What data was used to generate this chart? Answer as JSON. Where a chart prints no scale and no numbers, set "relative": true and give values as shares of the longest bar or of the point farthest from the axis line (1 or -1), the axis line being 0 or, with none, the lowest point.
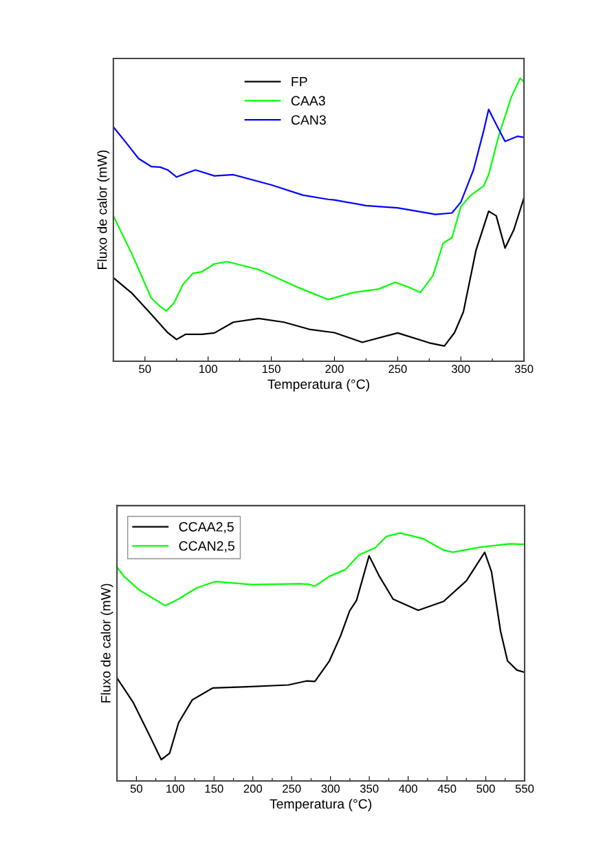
{
  "chart_data": [
    {
      "type": "line",
      "relative": true,
      "xlabel": "Temperatura (°C)",
      "ylabel": "Fluxo de calor (mW)",
      "xlim": [
        25,
        350
      ],
      "xticks": [
        50,
        {
          "value": 75,
          "label": null
        },
        100,
        {
          "value": 125,
          "label": null
        },
        150,
        {
          "value": 175,
          "label": null
        },
        200,
        {
          "value": 225,
          "label": null
        },
        250,
        {
          "value": 275,
          "label": null
        },
        300,
        {
          "value": 325,
          "label": null
        },
        350
      ],
      "tick_labels": "x",
      "legend": "top",
      "grid": false,
      "series": [
        {
          "name": "FP",
          "color": "#000000",
          "x": [
            25,
            40,
            55,
            68,
            75,
            82,
            95,
            105,
            120,
            140,
            160,
            180,
            200,
            222,
            250,
            275,
            287,
            295,
            302,
            312,
            322,
            328,
            335,
            342,
            350
          ],
          "values": [
            0.295,
            0.239,
            0.166,
            0.101,
            0.077,
            0.095,
            0.095,
            0.1,
            0.138,
            0.151,
            0.138,
            0.113,
            0.101,
            0.067,
            0.1,
            0.065,
            0.054,
            0.101,
            0.174,
            0.392,
            0.53,
            0.514,
            0.4,
            0.465,
            0.578
          ]
        },
        {
          "name": "CAA3",
          "color": "#00ff00",
          "x": [
            25,
            40,
            55,
            62,
            67,
            73,
            80,
            88,
            95,
            105,
            115,
            140,
            170,
            195,
            215,
            235,
            248,
            258,
            268,
            278,
            286,
            293,
            300,
            308,
            318,
            322,
            330,
            340,
            347,
            350
          ],
          "values": [
            0.514,
            0.376,
            0.223,
            0.194,
            0.178,
            0.206,
            0.271,
            0.311,
            0.316,
            0.344,
            0.352,
            0.324,
            0.263,
            0.218,
            0.243,
            0.255,
            0.279,
            0.263,
            0.243,
            0.303,
            0.417,
            0.437,
            0.546,
            0.587,
            0.619,
            0.659,
            0.797,
            0.934,
            1,
            0.987
          ]
        },
        {
          "name": "CAN3",
          "color": "#0000ff",
          "x": [
            25,
            35,
            45,
            55,
            62,
            68,
            75,
            82,
            90,
            105,
            120,
            150,
            175,
            195,
            200,
            225,
            250,
            280,
            293,
            300,
            310,
            318,
            322,
            328,
            335,
            345,
            350
          ],
          "values": [
            0.828,
            0.773,
            0.716,
            0.688,
            0.686,
            0.676,
            0.651,
            0.663,
            0.676,
            0.655,
            0.659,
            0.623,
            0.587,
            0.572,
            0.57,
            0.55,
            0.542,
            0.519,
            0.524,
            0.562,
            0.676,
            0.813,
            0.89,
            0.837,
            0.777,
            0.795,
            0.791
          ]
        }
      ]
    },
    {
      "type": "line",
      "relative": true,
      "xlabel": "Temperatura (°C)",
      "ylabel": "Fluxo de calor (mW)",
      "xlim": [
        25,
        550
      ],
      "xticks": [
        50,
        {
          "value": 75,
          "label": null
        },
        100,
        {
          "value": 125,
          "label": null
        },
        150,
        {
          "value": 175,
          "label": null
        },
        200,
        {
          "value": 225,
          "label": null
        },
        250,
        {
          "value": 275,
          "label": null
        },
        300,
        {
          "value": 325,
          "label": null
        },
        350,
        {
          "value": 375,
          "label": null
        },
        400,
        {
          "value": 425,
          "label": null
        },
        450,
        {
          "value": 475,
          "label": null
        },
        500,
        {
          "value": 525,
          "label": null
        },
        550
      ],
      "tick_labels": "x",
      "legend": "top left",
      "grid": false,
      "series": [
        {
          "name": "CCAA2,5",
          "color": "#000000",
          "x": [
            25,
            45.6,
            66,
            82,
            92.7,
            104.4,
            122,
            148.6,
            192.7,
            245.6,
            269,
            279.5,
            281,
            298.6,
            313,
            324.7,
            333.5,
            349.7,
            363,
            380.6,
            413,
            445.7,
            475,
            498.6,
            507.4,
            519,
            528,
            540,
            550
          ],
          "values": [
            0.415,
            0.318,
            0.189,
            0.086,
            0.111,
            0.235,
            0.327,
            0.375,
            0.38,
            0.387,
            0.403,
            0.401,
            0.406,
            0.484,
            0.585,
            0.686,
            0.728,
            0.908,
            0.825,
            0.733,
            0.688,
            0.724,
            0.807,
            0.922,
            0.843,
            0.604,
            0.484,
            0.447,
            0.438
          ]
        },
        {
          "name": "CCAN2,5",
          "color": "#00ff00",
          "x": [
            25,
            34,
            54,
            87,
            104,
            128,
            151.5,
            198.6,
            260,
            272,
            279,
            281,
            298.6,
            319,
            337,
            357.5,
            372,
            390,
            419,
            445.7,
            457.5,
            493,
            531,
            550
          ],
          "values": [
            0.862,
            0.825,
            0.769,
            0.707,
            0.733,
            0.779,
            0.804,
            0.792,
            0.795,
            0.793,
            0.786,
            0.788,
            0.825,
            0.852,
            0.912,
            0.94,
            0.986,
            1,
            0.977,
            0.931,
            0.922,
            0.943,
            0.956,
            0.954
          ]
        }
      ]
    }
  ]
}
